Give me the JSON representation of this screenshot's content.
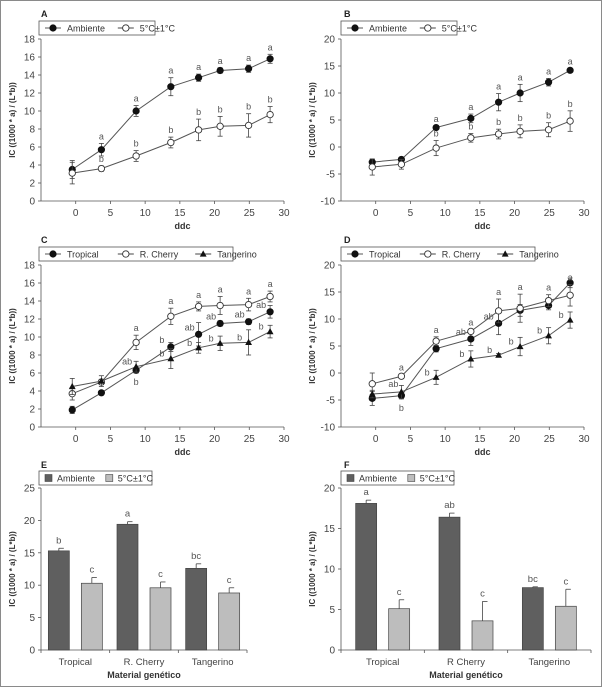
{
  "chart_data": [
    {
      "id": "A",
      "type": "line",
      "panel_label": "A",
      "xlabel": "ddc",
      "ylabel": "IC ((1000 * a) / (L*b))",
      "xlim": [
        -5,
        30
      ],
      "ylim": [
        0,
        18
      ],
      "xticks": [
        0,
        5,
        10,
        15,
        20,
        25,
        30
      ],
      "yticks": [
        0,
        2,
        4,
        6,
        8,
        10,
        12,
        14,
        16,
        18
      ],
      "grid": false,
      "legend_position": "top-left",
      "x": [
        -0.5,
        3.7,
        8.7,
        13.7,
        17.7,
        20.8,
        24.9,
        28
      ],
      "series": [
        {
          "name": "Ambiente",
          "marker": "filled-circle",
          "values": [
            3.5,
            5.7,
            10.0,
            12.7,
            13.7,
            14.5,
            14.7,
            15.8
          ],
          "errors": [
            1.0,
            0.7,
            0.6,
            1.0,
            0.4,
            0.3,
            0.4,
            0.5
          ],
          "letters": [
            "",
            "a",
            "a",
            "a",
            "a",
            "a",
            "a",
            "a"
          ]
        },
        {
          "name": "5°C±1°C",
          "marker": "open-circle",
          "values": [
            3.1,
            3.6,
            5.0,
            6.5,
            7.9,
            8.3,
            8.4,
            9.6
          ],
          "errors": [
            1.2,
            0.3,
            0.6,
            0.6,
            1.2,
            1.1,
            1.3,
            0.9
          ],
          "letters": [
            "",
            "b",
            "b",
            "b",
            "b",
            "b",
            "b",
            "b"
          ]
        }
      ]
    },
    {
      "id": "B",
      "type": "line",
      "panel_label": "B",
      "xlabel": "ddc",
      "ylabel": "IC ((1000 * a) / (L*b))",
      "xlim": [
        -5,
        30
      ],
      "ylim": [
        -10,
        20
      ],
      "xticks": [
        0,
        5,
        10,
        15,
        20,
        25,
        30
      ],
      "yticks": [
        -10,
        -5,
        0,
        5,
        10,
        15,
        20
      ],
      "grid": false,
      "legend_position": "top-left",
      "x": [
        -0.5,
        3.7,
        8.7,
        13.7,
        17.7,
        20.8,
        24.9,
        28
      ],
      "series": [
        {
          "name": "Ambiente",
          "marker": "filled-circle",
          "values": [
            -2.8,
            -2.3,
            3.6,
            5.3,
            8.3,
            10.0,
            12.0,
            14.2
          ],
          "errors": [
            0.5,
            0.4,
            0.3,
            0.8,
            1.6,
            1.6,
            0.7,
            0.3
          ],
          "letters": [
            "",
            "",
            "a",
            "a",
            "a",
            "a",
            "a",
            "a"
          ]
        },
        {
          "name": "5°C±1°C",
          "marker": "open-circle",
          "values": [
            -3.7,
            -3.2,
            -0.2,
            1.7,
            2.4,
            2.9,
            3.2,
            4.8
          ],
          "errors": [
            1.5,
            0.9,
            1.4,
            0.8,
            0.9,
            1.2,
            1.3,
            1.9
          ],
          "letters": [
            "",
            "",
            "b",
            "b",
            "b",
            "b",
            "b",
            "b"
          ]
        }
      ]
    },
    {
      "id": "C",
      "type": "line",
      "panel_label": "C",
      "xlabel": "ddc",
      "ylabel": "IC ((1000 * a) / (L*b))",
      "xlim": [
        -5,
        30
      ],
      "ylim": [
        0,
        18
      ],
      "xticks": [
        0,
        5,
        10,
        15,
        20,
        25,
        30
      ],
      "yticks": [
        0,
        2,
        4,
        6,
        8,
        10,
        12,
        14,
        16,
        18
      ],
      "grid": false,
      "legend_position": "top-left",
      "x": [
        -0.5,
        3.7,
        8.7,
        13.7,
        17.7,
        20.8,
        24.9,
        28
      ],
      "series": [
        {
          "name": "Tropical",
          "marker": "filled-circle",
          "values": [
            1.9,
            3.8,
            6.3,
            8.9,
            10.3,
            11.5,
            11.7,
            12.8
          ],
          "errors": [
            0.4,
            0.2,
            0.3,
            0.5,
            1.3,
            0.3,
            0.3,
            0.7
          ],
          "letters": [
            "",
            "",
            "b",
            "b",
            "ab",
            "ab",
            "ab",
            "ab"
          ]
        },
        {
          "name": "R. Cherry",
          "marker": "open-circle",
          "values": [
            3.7,
            5.0,
            9.4,
            12.3,
            13.4,
            13.5,
            13.6,
            14.5
          ],
          "errors": [
            0.7,
            0.3,
            0.8,
            0.9,
            0.5,
            1.0,
            0.7,
            0.6
          ],
          "letters": [
            "",
            "",
            "a",
            "a",
            "a",
            "a",
            "a",
            "a"
          ]
        },
        {
          "name": "Tangerino",
          "marker": "filled-triangle",
          "values": [
            4.5,
            5.1,
            6.7,
            7.6,
            8.8,
            9.3,
            9.4,
            10.6
          ],
          "errors": [
            0.9,
            0.6,
            0.6,
            1.1,
            0.6,
            0.8,
            1.4,
            0.7
          ],
          "letters": [
            "",
            "",
            "ab",
            "b",
            "b",
            "b",
            "b",
            "b"
          ]
        }
      ]
    },
    {
      "id": "D",
      "type": "line",
      "panel_label": "D",
      "xlabel": "ddc",
      "ylabel": "IC ((1000 * a) / (L*b))",
      "xlim": [
        -5,
        30
      ],
      "ylim": [
        -10,
        20
      ],
      "xticks": [
        0,
        5,
        10,
        15,
        20,
        25,
        30
      ],
      "yticks": [
        -10,
        -5,
        0,
        5,
        10,
        15,
        20
      ],
      "grid": false,
      "legend_position": "top-left",
      "x": [
        -0.5,
        3.7,
        8.7,
        13.7,
        17.7,
        20.8,
        24.9,
        28
      ],
      "series": [
        {
          "name": "Tropical",
          "marker": "filled-circle",
          "values": [
            -4.7,
            -4.2,
            4.5,
            6.3,
            9.2,
            11.6,
            12.5,
            16.7
          ],
          "errors": [
            1.3,
            0.6,
            0.6,
            1.2,
            2.1,
            1.1,
            0.8,
            0.9
          ],
          "letters": [
            "",
            "b",
            "",
            "",
            "",
            "",
            "",
            ""
          ]
        },
        {
          "name": "R. Cherry",
          "marker": "open-circle",
          "values": [
            -2.0,
            -0.6,
            5.9,
            7.7,
            11.5,
            12.0,
            13.4,
            14.4
          ],
          "errors": [
            2.0,
            0.3,
            0.8,
            0.4,
            2.2,
            2.6,
            1.1,
            2.0
          ],
          "letters": [
            "",
            "a",
            "a",
            "a",
            "a",
            "a",
            "a",
            "a"
          ]
        },
        {
          "name": "Tangerino",
          "marker": "filled-triangle",
          "values": [
            -3.9,
            -3.5,
            -0.8,
            2.6,
            3.3,
            4.9,
            6.9,
            9.8
          ],
          "errors": [
            0.7,
            1.2,
            1.3,
            1.5,
            0.3,
            1.7,
            1.5,
            1.5
          ],
          "letters": [
            "",
            "ab",
            "b",
            "b",
            "b",
            "b",
            "b",
            "b"
          ]
        }
      ],
      "extra_letters": [
        {
          "x": 13.7,
          "series": "Tropical",
          "text": "ab"
        },
        {
          "x": 17.7,
          "series": "Tropical",
          "text": "ab"
        }
      ]
    },
    {
      "id": "E",
      "type": "bar",
      "panel_label": "E",
      "xlabel": "Material genético",
      "ylabel": "IC ((1000 * a) / (L*b))",
      "categories": [
        "Tropical",
        "R. Cherry",
        "Tangerino"
      ],
      "ylim": [
        0,
        25
      ],
      "yticks": [
        0,
        5,
        10,
        15,
        20,
        25
      ],
      "grid": false,
      "legend_position": "top-left",
      "series": [
        {
          "name": "Ambiente",
          "color": "#5f5f5f",
          "values": [
            15.3,
            19.4,
            12.6
          ],
          "errors": [
            0.4,
            0.4,
            0.7
          ],
          "letters": [
            "b",
            "a",
            "bc"
          ]
        },
        {
          "name": "5°C±1°C",
          "color": "#bdbdbd",
          "values": [
            10.3,
            9.6,
            8.8
          ],
          "errors": [
            0.9,
            0.9,
            0.8
          ],
          "letters": [
            "c",
            "c",
            "c"
          ]
        }
      ]
    },
    {
      "id": "F",
      "type": "bar",
      "panel_label": "F",
      "xlabel": "Material genético",
      "ylabel": "IC ((1000 * a) / (L*b))",
      "categories": [
        "Tropical",
        "R Cherry",
        "Tangerino"
      ],
      "ylim": [
        0,
        20
      ],
      "yticks": [
        0,
        5,
        10,
        15,
        20
      ],
      "grid": false,
      "legend_position": "top-left",
      "series": [
        {
          "name": "Ambiente",
          "color": "#5f5f5f",
          "values": [
            18.1,
            16.4,
            7.7
          ],
          "errors": [
            0.4,
            0.5,
            0.1
          ],
          "letters": [
            "a",
            "ab",
            "bc"
          ]
        },
        {
          "name": "5°C±1°C",
          "color": "#bdbdbd",
          "values": [
            5.1,
            3.6,
            5.4
          ],
          "errors": [
            1.1,
            2.4,
            2.1
          ],
          "letters": [
            "c",
            "c",
            "c"
          ]
        }
      ]
    }
  ]
}
